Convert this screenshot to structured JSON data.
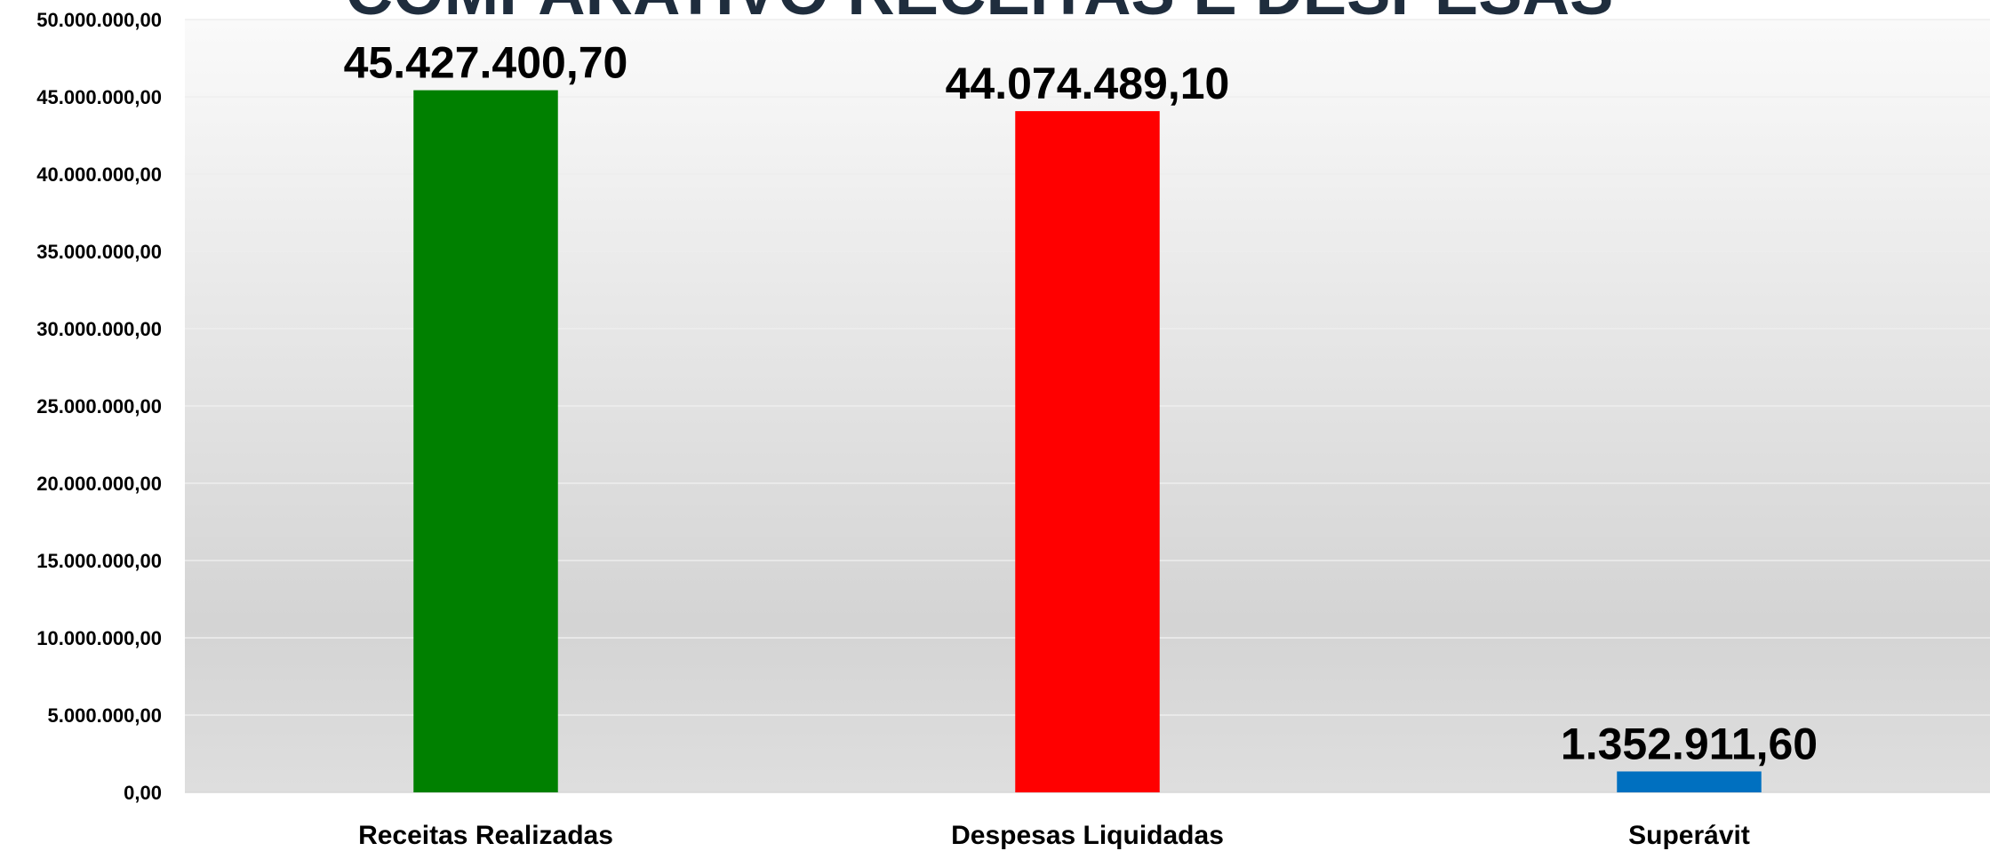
{
  "chart_data": {
    "type": "bar",
    "title": "COMPARATIVO RECEITAS E DESPESAS",
    "xlabel": "",
    "ylabel": "",
    "categories": [
      "Receitas Realizadas",
      "Despesas Liquidadas",
      "Superávit"
    ],
    "values": [
      45427400.7,
      44074489.1,
      1352911.6
    ],
    "data_labels": [
      "45.427.400,70",
      "44.074.489,10",
      "1.352.911,60"
    ],
    "colors": [
      "#008000",
      "#ff0000",
      "#0070c0"
    ],
    "ylim": [
      0,
      50000000
    ],
    "yticks": [
      0,
      5000000,
      10000000,
      15000000,
      20000000,
      25000000,
      30000000,
      35000000,
      40000000,
      45000000,
      50000000
    ],
    "ytick_labels": [
      "0,00",
      "5.000.000,00",
      "10.000.000,00",
      "15.000.000,00",
      "20.000.000,00",
      "25.000.000,00",
      "30.000.000,00",
      "35.000.000,00",
      "40.000.000,00",
      "45.000.000,00",
      "50.000.000,00"
    ],
    "grid": true,
    "legend": "none"
  }
}
